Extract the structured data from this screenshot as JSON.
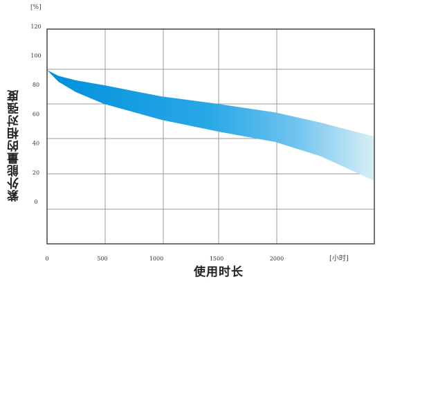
{
  "chart_data": {
    "type": "area",
    "title": "",
    "xlabel": "使用时长",
    "ylabel": "紫外能量的相对强度",
    "x_unit": "[小时]",
    "y_unit": "[%]",
    "x_ticks": [
      "0",
      "500",
      "1000",
      "1500",
      "2000"
    ],
    "y_ticks": [
      "120",
      "100",
      "80",
      "60",
      "40",
      "20",
      "0"
    ],
    "xlim": [
      0,
      2870
    ],
    "ylim": [
      -29,
      118
    ],
    "grid": true,
    "band": {
      "x": [
        0,
        100,
        250,
        500,
        1000,
        1500,
        2000,
        2400,
        2870
      ],
      "upper": [
        90,
        86,
        83,
        79.6,
        72,
        66.8,
        61,
        54,
        44.5
      ],
      "lower": [
        90,
        82,
        75,
        66.8,
        56,
        47.9,
        40.8,
        31,
        14.2
      ]
    },
    "colors": {
      "start": "#0090dc",
      "mid": "#2aa8e6",
      "end": "#d8eef5",
      "grid": "#999999",
      "axis": "#444444"
    }
  }
}
